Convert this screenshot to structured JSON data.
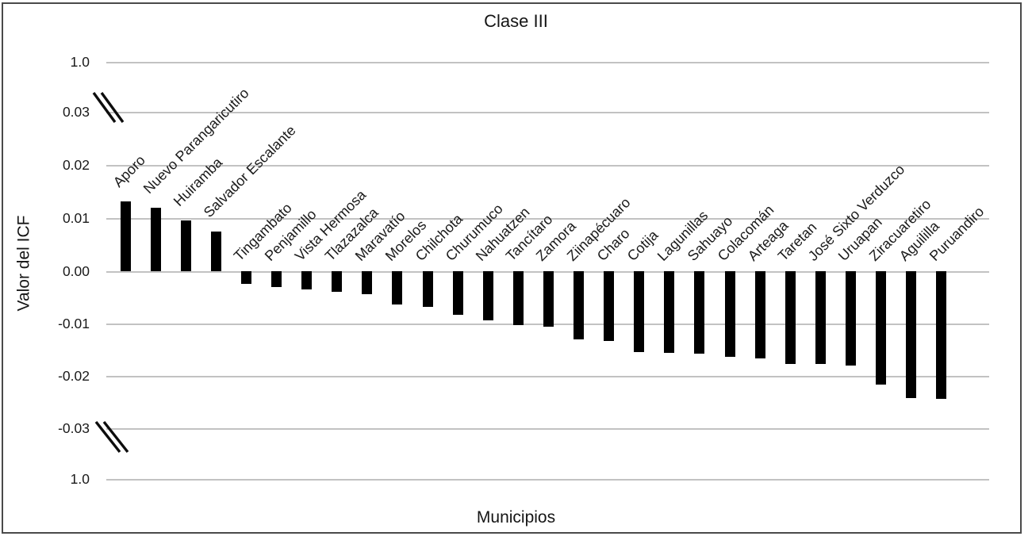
{
  "chart_data": {
    "type": "bar",
    "title": "Clase III",
    "xlabel": "Municipios",
    "ylabel": "Valor del ICF",
    "categories": [
      "Aporo",
      "Nuevo Parangaricutiro",
      "Huiramba",
      "Salvador Escalante",
      "Tingambato",
      "Penjamillo",
      "Vista Hermosa",
      "Tlazazalca",
      "Maravatío",
      "Morelos",
      "Chilchota",
      "Churumuco",
      "Nahuatzen",
      "Tancítaro",
      "Zamora",
      "Ziinapécuaro",
      "Charo",
      "Cotija",
      "Lagunillas",
      "Sahuayo",
      "Colacomán",
      "Arteaga",
      "Taretan",
      "José Sixto Verduzco",
      "Uruapan",
      "Ziracuaretiro",
      "Aguililla",
      "Puruandiro"
    ],
    "values": [
      0.0133,
      0.0121,
      0.0096,
      0.0075,
      -0.0024,
      -0.003,
      -0.0034,
      -0.0039,
      -0.0043,
      -0.0063,
      -0.0068,
      -0.0083,
      -0.0094,
      -0.0102,
      -0.0105,
      -0.013,
      -0.0133,
      -0.0154,
      -0.0156,
      -0.0157,
      -0.0163,
      -0.0166,
      -0.0176,
      -0.0177,
      -0.018,
      -0.0216,
      -0.0242,
      -0.0243
    ],
    "y_axis": {
      "tick_labels": [
        "1.0",
        "0.03",
        "0.02",
        "0.01",
        "0.00",
        "-0.01",
        "-0.02",
        "-0.03",
        "1.0"
      ],
      "axis_break_top": "between 1.0 and 0.03",
      "axis_break_bottom": "between -0.03 and 1.0"
    },
    "bar_color": "#000000",
    "grid_color": "#c2c2c2",
    "grid": "horizontal lines on",
    "legend": "none",
    "x_label_rotation_deg": 45
  }
}
